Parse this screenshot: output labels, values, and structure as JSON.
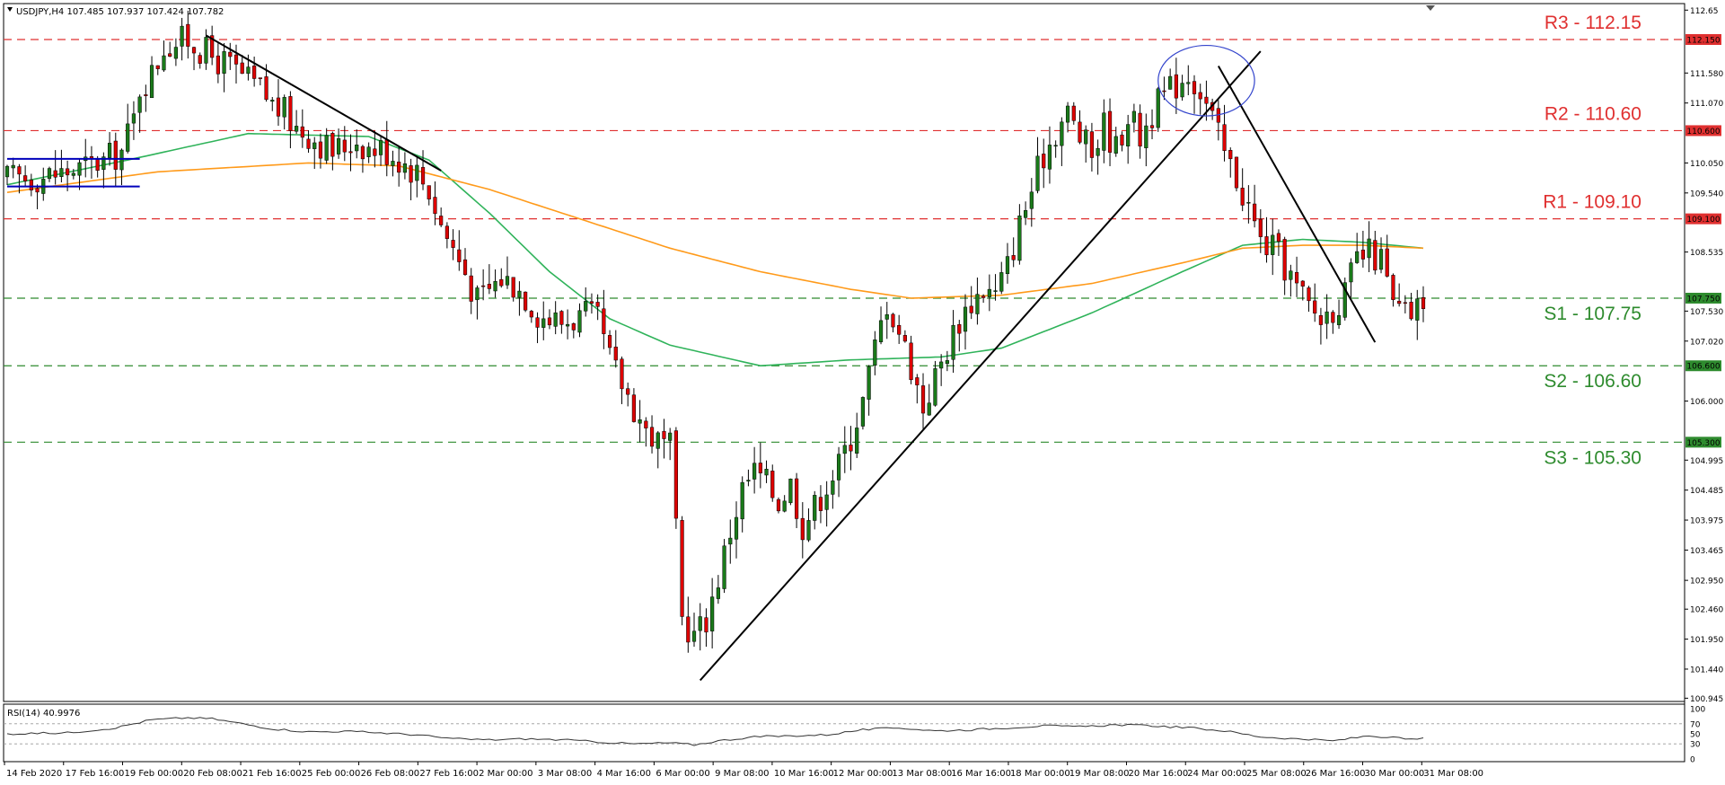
{
  "header": {
    "symbol_line": "USDJPY,H4  107.485 107.937 107.424 107.782"
  },
  "colors": {
    "bull": "#1a7a1a",
    "bear": "#dd0000",
    "ma_fast": "#2fb35a",
    "ma_slow": "#ff9a1a",
    "resistance": "#e03030",
    "support": "#2e8b2e",
    "trendline": "#000000",
    "range_box": "#0000bb",
    "ellipse": "#3344cc",
    "rsi_line": "#333333"
  },
  "chart_data": [
    {
      "type": "candlestick",
      "title": "USDJPY,H4",
      "ylim": [
        100.92,
        112.7
      ],
      "y_ticks": [
        "112.65",
        "112.150",
        "111.580",
        "111.070",
        "110.600",
        "110.050",
        "109.540",
        "109.100",
        "108.535",
        "107.750",
        "107.530",
        "107.020",
        "106.600",
        "106.000",
        "105.300",
        "104.995",
        "104.485",
        "103.975",
        "103.465",
        "102.950",
        "102.460",
        "101.950",
        "101.440",
        "100.945"
      ],
      "x_ticks": [
        "14 Feb 2020",
        "17 Feb 16:00",
        "19 Feb 00:00",
        "20 Feb 08:00",
        "21 Feb 16:00",
        "25 Feb 00:00",
        "26 Feb 08:00",
        "27 Feb 16:00",
        "2 Mar 00:00",
        "3 Mar 08:00",
        "4 Mar 16:00",
        "6 Mar 00:00",
        "9 Mar 08:00",
        "10 Mar 16:00",
        "12 Mar 00:00",
        "13 Mar 08:00",
        "16 Mar 16:00",
        "18 Mar 00:00",
        "19 Mar 08:00",
        "20 Mar 16:00",
        "24 Mar 00:00",
        "25 Mar 08:00",
        "26 Mar 16:00",
        "30 Mar 00:00",
        "31 Mar 08:00"
      ],
      "levels": [
        {
          "name": "R3 - 112.15",
          "value": 112.15,
          "tag": "112.150",
          "kind": "resistance"
        },
        {
          "name": "R2 - 110.60",
          "value": 110.6,
          "tag": "110.600",
          "kind": "resistance"
        },
        {
          "name": "R1 - 109.10",
          "value": 109.1,
          "tag": "109.100",
          "kind": "resistance"
        },
        {
          "name": "S1 - 107.75",
          "value": 107.75,
          "tag": "107.750",
          "kind": "support"
        },
        {
          "name": "S2 - 106.60",
          "value": 106.6,
          "tag": "106.600",
          "kind": "support"
        },
        {
          "name": "S3 - 105.30",
          "value": 105.3,
          "tag": "105.300",
          "kind": "support"
        }
      ],
      "close_path": [
        [
          0,
          109.78
        ],
        [
          6,
          109.82
        ],
        [
          12,
          109.95
        ],
        [
          16,
          110.08
        ],
        [
          19,
          110.25
        ],
        [
          21,
          110.8
        ],
        [
          22,
          111.35
        ],
        [
          24,
          111.55
        ],
        [
          26,
          112.05
        ],
        [
          28,
          112.1
        ],
        [
          30,
          112.15
        ],
        [
          32,
          112.0
        ],
        [
          34,
          111.85
        ],
        [
          36,
          111.75
        ],
        [
          38,
          111.6
        ],
        [
          40,
          111.45
        ],
        [
          42,
          111.3
        ],
        [
          44,
          111.05
        ],
        [
          46,
          110.9
        ],
        [
          48,
          110.65
        ],
        [
          50,
          110.55
        ],
        [
          52,
          110.4
        ],
        [
          54,
          110.25
        ],
        [
          56,
          110.35
        ],
        [
          58,
          110.45
        ],
        [
          60,
          110.3
        ],
        [
          62,
          110.3
        ],
        [
          64,
          110.2
        ],
        [
          66,
          110.05
        ],
        [
          68,
          109.9
        ],
        [
          70,
          109.6
        ],
        [
          72,
          109.0
        ],
        [
          74,
          108.6
        ],
        [
          76,
          108.2
        ],
        [
          78,
          107.7
        ],
        [
          80,
          107.9
        ],
        [
          82,
          108.1
        ],
        [
          84,
          108.0
        ],
        [
          86,
          107.8
        ],
        [
          88,
          107.5
        ],
        [
          90,
          107.4
        ],
        [
          92,
          107.35
        ],
        [
          94,
          107.4
        ],
        [
          96,
          107.45
        ],
        [
          98,
          107.35
        ],
        [
          100,
          106.7
        ],
        [
          102,
          106.3
        ],
        [
          104,
          105.9
        ],
        [
          106,
          105.5
        ],
        [
          108,
          105.3
        ],
        [
          110,
          105.2
        ],
        [
          112,
          102.3
        ],
        [
          114,
          102.0
        ],
        [
          116,
          102.3
        ],
        [
          118,
          103.0
        ],
        [
          120,
          103.8
        ],
        [
          122,
          104.5
        ],
        [
          124,
          104.8
        ],
        [
          126,
          104.6
        ],
        [
          128,
          104.3
        ],
        [
          130,
          104.6
        ],
        [
          132,
          103.9
        ],
        [
          134,
          104.2
        ],
        [
          136,
          104.6
        ],
        [
          138,
          104.9
        ],
        [
          140,
          105.4
        ],
        [
          142,
          106.0
        ],
        [
          144,
          106.9
        ],
        [
          146,
          107.7
        ],
        [
          148,
          107.2
        ],
        [
          150,
          106.6
        ],
        [
          152,
          105.9
        ],
        [
          154,
          106.4
        ],
        [
          156,
          106.9
        ],
        [
          158,
          107.4
        ],
        [
          160,
          107.7
        ],
        [
          162,
          107.9
        ],
        [
          164,
          107.8
        ],
        [
          166,
          108.3
        ],
        [
          168,
          109.0
        ],
        [
          170,
          109.6
        ],
        [
          172,
          110.2
        ],
        [
          174,
          110.6
        ],
        [
          176,
          110.9
        ],
        [
          178,
          110.5
        ],
        [
          180,
          110.2
        ],
        [
          182,
          110.7
        ],
        [
          184,
          110.3
        ],
        [
          186,
          110.9
        ],
        [
          188,
          110.5
        ],
        [
          190,
          110.9
        ],
        [
          192,
          111.2
        ],
        [
          194,
          111.4
        ],
        [
          196,
          111.6
        ],
        [
          198,
          111.3
        ],
        [
          200,
          110.8
        ],
        [
          202,
          110.2
        ],
        [
          204,
          109.8
        ],
        [
          206,
          109.3
        ],
        [
          208,
          108.7
        ],
        [
          210,
          108.6
        ],
        [
          212,
          108.3
        ],
        [
          214,
          107.9
        ],
        [
          216,
          107.6
        ],
        [
          218,
          107.4
        ],
        [
          220,
          107.6
        ],
        [
          222,
          107.8
        ],
        [
          224,
          108.4
        ],
        [
          226,
          108.5
        ],
        [
          228,
          108.4
        ],
        [
          230,
          107.6
        ],
        [
          232,
          107.45
        ],
        [
          234,
          107.55
        ],
        [
          235,
          107.78
        ]
      ],
      "moving_averages": [
        {
          "color_key": "ma_fast",
          "points": [
            [
              0,
              109.68
            ],
            [
              20,
              110.1
            ],
            [
              40,
              110.55
            ],
            [
              60,
              110.5
            ],
            [
              70,
              110.1
            ],
            [
              80,
              109.2
            ],
            [
              90,
              108.2
            ],
            [
              100,
              107.4
            ],
            [
              110,
              106.95
            ],
            [
              125,
              106.6
            ],
            [
              140,
              106.7
            ],
            [
              155,
              106.75
            ],
            [
              165,
              106.9
            ],
            [
              180,
              107.5
            ],
            [
              195,
              108.2
            ],
            [
              205,
              108.65
            ],
            [
              215,
              108.75
            ],
            [
              225,
              108.7
            ],
            [
              235,
              108.6
            ]
          ]
        },
        {
          "color_key": "ma_slow",
          "points": [
            [
              0,
              109.55
            ],
            [
              25,
              109.9
            ],
            [
              50,
              110.05
            ],
            [
              65,
              110.0
            ],
            [
              80,
              109.6
            ],
            [
              95,
              109.1
            ],
            [
              110,
              108.6
            ],
            [
              125,
              108.2
            ],
            [
              140,
              107.9
            ],
            [
              150,
              107.75
            ],
            [
              165,
              107.8
            ],
            [
              180,
              108.0
            ],
            [
              195,
              108.35
            ],
            [
              205,
              108.6
            ],
            [
              215,
              108.65
            ],
            [
              225,
              108.65
            ],
            [
              235,
              108.6
            ]
          ]
        }
      ],
      "trendlines": [
        [
          [
            33,
            112.22
          ],
          [
            72,
            109.92
          ]
        ],
        [
          [
            115,
            101.25
          ],
          [
            208,
            111.95
          ]
        ],
        [
          [
            201,
            111.7
          ],
          [
            227,
            107.0
          ]
        ]
      ],
      "range_box": {
        "upper": 110.12,
        "lower": 109.65,
        "from": 0,
        "to": 22
      },
      "ellipse": {
        "center_index": 199,
        "center_value": 111.45,
        "span_index": 8,
        "span_value": 0.6
      },
      "candle_count": 236
    },
    {
      "type": "line",
      "title": "RSI(14) 40.9976",
      "ylim": [
        0,
        100
      ],
      "y_ticks": [
        "100",
        "70",
        "50",
        "30",
        "0"
      ],
      "points": [
        [
          0,
          50
        ],
        [
          10,
          52
        ],
        [
          18,
          62
        ],
        [
          24,
          78
        ],
        [
          30,
          82
        ],
        [
          34,
          80
        ],
        [
          38,
          72
        ],
        [
          44,
          60
        ],
        [
          50,
          54
        ],
        [
          56,
          55
        ],
        [
          62,
          52
        ],
        [
          68,
          48
        ],
        [
          74,
          40
        ],
        [
          80,
          38
        ],
        [
          86,
          40
        ],
        [
          92,
          38
        ],
        [
          98,
          34
        ],
        [
          104,
          30
        ],
        [
          110,
          32
        ],
        [
          114,
          28
        ],
        [
          118,
          36
        ],
        [
          124,
          44
        ],
        [
          130,
          46
        ],
        [
          136,
          48
        ],
        [
          142,
          58
        ],
        [
          148,
          62
        ],
        [
          154,
          56
        ],
        [
          160,
          58
        ],
        [
          166,
          62
        ],
        [
          172,
          66
        ],
        [
          178,
          64
        ],
        [
          184,
          68
        ],
        [
          190,
          66
        ],
        [
          196,
          62
        ],
        [
          202,
          56
        ],
        [
          208,
          44
        ],
        [
          214,
          40
        ],
        [
          220,
          36
        ],
        [
          226,
          46
        ],
        [
          230,
          42
        ],
        [
          234,
          38
        ],
        [
          235,
          41
        ]
      ]
    }
  ]
}
